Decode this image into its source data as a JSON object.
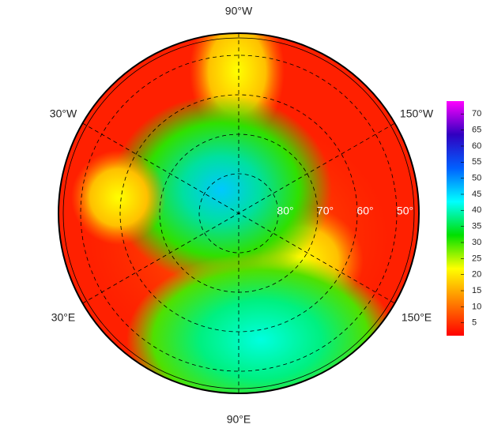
{
  "map": {
    "longitude_labels": [
      "90°W",
      "150°W",
      "150°E",
      "90°E",
      "30°E",
      "30°W"
    ],
    "latitude_labels": [
      "80°",
      "70°",
      "60°",
      "50°"
    ]
  },
  "colorbar": {
    "range": [
      1,
      74
    ],
    "ticks": [
      5,
      10,
      15,
      20,
      25,
      30,
      35,
      40,
      45,
      50,
      55,
      60,
      65,
      70
    ],
    "colors": [
      "#ff0000",
      "#ff8000",
      "#ffff00",
      "#00e000",
      "#00ffff",
      "#0060ff",
      "#3000c0",
      "#ff00ff"
    ]
  }
}
